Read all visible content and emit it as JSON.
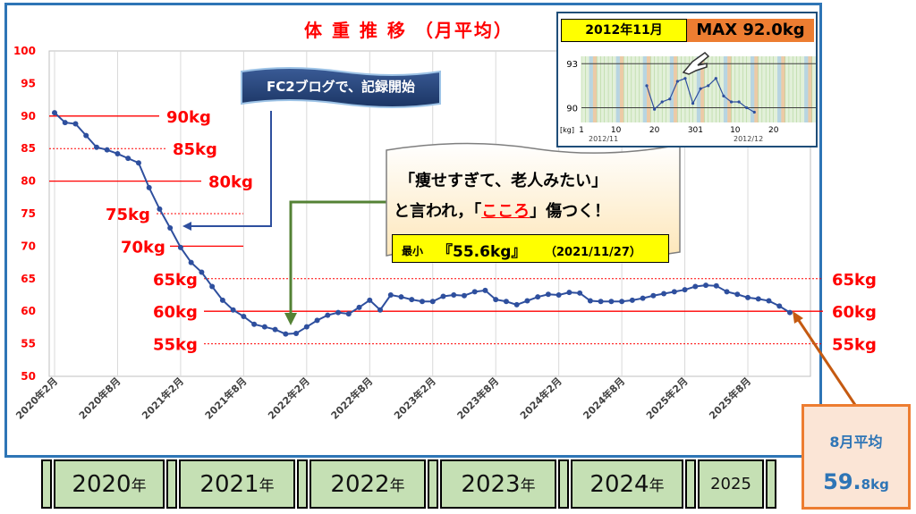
{
  "chart_data": {
    "type": "line",
    "title": "体 重 推 移 （月平均）",
    "ylim": [
      50,
      100
    ],
    "y_ticks": [
      "50",
      "55",
      "60",
      "65",
      "70",
      "75",
      "80",
      "85",
      "90",
      "95",
      "100"
    ],
    "x_tick_labels": [
      "2020年2月",
      "2020年8月",
      "2021年2月",
      "2021年8月",
      "2022年2月",
      "2022年8月",
      "2023年2月",
      "2023年8月",
      "2024年2月",
      "2024年8月",
      "2025年2月",
      "2025年8月"
    ],
    "series": [
      {
        "values": [
          90.5,
          89.0,
          88.8,
          87.0,
          85.2,
          84.8,
          84.2,
          83.5,
          82.8,
          79.0,
          75.7,
          72.8,
          69.8,
          67.5,
          66.0,
          63.8,
          61.7,
          60.2,
          59.2,
          58.0,
          57.6,
          57.2,
          56.5,
          56.6,
          57.6,
          58.6,
          59.4,
          59.8,
          59.6,
          60.6,
          61.7,
          60.2,
          62.5,
          62.2,
          61.8,
          61.5,
          61.5,
          62.3,
          62.5,
          62.4,
          63.0,
          63.2,
          61.8,
          61.5,
          61.0,
          61.6,
          62.2,
          62.6,
          62.5,
          62.9,
          62.8,
          61.6,
          61.5,
          61.5,
          61.5,
          61.7,
          62.0,
          62.4,
          62.7,
          63.0,
          63.3,
          63.8,
          64.0,
          63.9,
          63.0,
          62.6,
          62.1,
          61.9,
          61.6,
          60.8,
          59.8
        ]
      }
    ],
    "ref_lines": [
      {
        "label": "90kg",
        "value": 90,
        "style": "solid"
      },
      {
        "label": "85kg",
        "value": 85,
        "style": "dotted"
      },
      {
        "label": "80kg",
        "value": 80,
        "style": "solid"
      },
      {
        "label": "75kg",
        "value": 75,
        "style": "dotted"
      },
      {
        "label": "70kg",
        "value": 70,
        "style": "solid"
      },
      {
        "label": "65kg",
        "value": 65,
        "style": "dotted"
      },
      {
        "label": "60kg",
        "value": 60,
        "style": "solid"
      },
      {
        "label": "55kg",
        "value": 55,
        "style": "dotted"
      }
    ],
    "right_labels": [
      "65kg",
      "60kg",
      "55kg"
    ],
    "colors": {
      "line": "#2e4f9e",
      "ref": "#ff0000",
      "title": "#ff0000"
    }
  },
  "callouts": {
    "blog": "FC2ブログで、記録開始",
    "quote_line1": "「痩せすぎて、老人みたい」",
    "quote_line2_pre": "と言われ，「",
    "quote_line2_red": "こころ",
    "quote_line2_post": "」傷つく！",
    "min_label": "最小",
    "min_value": "『55.6kg』",
    "min_date": "（2021/11/27）"
  },
  "inset": {
    "date": "2012年11月",
    "max": "MAX 92.0kg",
    "y_ticks": [
      "93",
      "90"
    ],
    "unit": "[kg]",
    "x_ticks": [
      "1",
      "10",
      "20",
      "30",
      "1",
      "10",
      "20"
    ],
    "month_labels": [
      "2012/11",
      "2012/12"
    ],
    "values": [
      91.5,
      89.9,
      90.4,
      90.6,
      91.8,
      92.0,
      90.3,
      91.3,
      91.5,
      92.0,
      90.8,
      90.4,
      90.4,
      90.0,
      89.7
    ]
  },
  "year_bar": [
    {
      "year": "2020",
      "suffix": "年"
    },
    {
      "year": "2021",
      "suffix": "年"
    },
    {
      "year": "2022",
      "suffix": "年"
    },
    {
      "year": "2023",
      "suffix": "年"
    },
    {
      "year": "2024",
      "suffix": "年"
    },
    {
      "year": "2025",
      "suffix": ""
    }
  ],
  "month_box": {
    "label": "8月平均",
    "value_main": "59.",
    "value_small": "8kg"
  }
}
